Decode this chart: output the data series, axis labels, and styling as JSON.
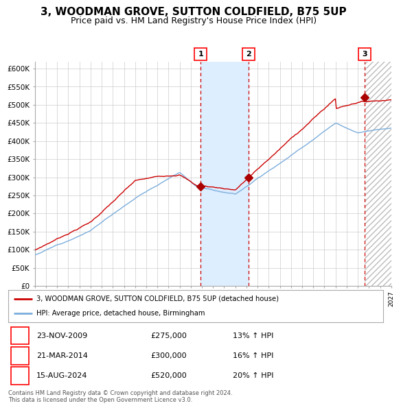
{
  "title": "3, WOODMAN GROVE, SUTTON COLDFIELD, B75 5UP",
  "subtitle": "Price paid vs. HM Land Registry's House Price Index (HPI)",
  "ylim": [
    0,
    620000
  ],
  "yticks": [
    0,
    50000,
    100000,
    150000,
    200000,
    250000,
    300000,
    350000,
    400000,
    450000,
    500000,
    550000,
    600000
  ],
  "ytick_labels": [
    "£0",
    "£50K",
    "£100K",
    "£150K",
    "£200K",
    "£250K",
    "£300K",
    "£350K",
    "£400K",
    "£450K",
    "£500K",
    "£550K",
    "£600K"
  ],
  "x_start_year": 1995,
  "x_end_year": 2027,
  "sale_years_float": [
    2009.896,
    2014.22,
    2024.622
  ],
  "sale_prices": [
    275000,
    300000,
    520000
  ],
  "sale_labels": [
    "1",
    "2",
    "3"
  ],
  "sale_date_str": [
    "23-NOV-2009",
    "21-MAR-2014",
    "15-AUG-2024"
  ],
  "sale_price_str": [
    "£275,000",
    "£300,000",
    "£520,000"
  ],
  "hpi_pct_str": [
    "13% ↑ HPI",
    "16% ↑ HPI",
    "20% ↑ HPI"
  ],
  "legend_line1": "3, WOODMAN GROVE, SUTTON COLDFIELD, B75 5UP (detached house)",
  "legend_line2": "HPI: Average price, detached house, Birmingham",
  "hpi_line_color": "#7aaddc",
  "price_line_color": "#cc0000",
  "marker_color": "#aa0000",
  "shade_color": "#ddeeff",
  "hatch_color": "#bbbbbb",
  "grid_color": "#cccccc",
  "bg_color": "#ffffff",
  "title_fontsize": 11,
  "subtitle_fontsize": 9,
  "footnote": "Contains HM Land Registry data © Crown copyright and database right 2024.\nThis data is licensed under the Open Government Licence v3.0."
}
